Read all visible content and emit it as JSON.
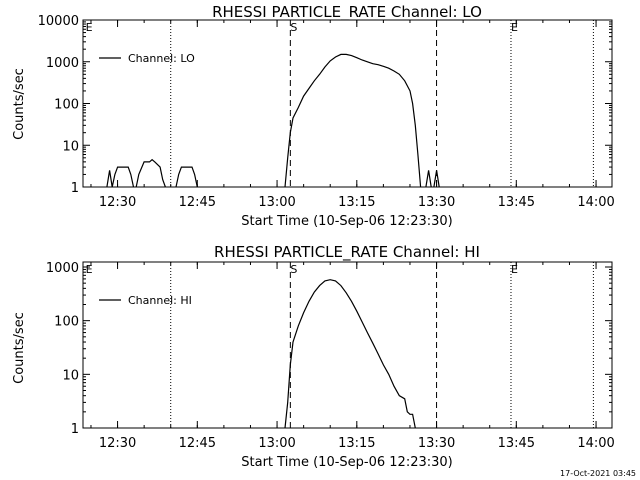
{
  "chart_data": [
    {
      "type": "line",
      "title": "RHESSI PARTICLE_RATE Channel: LO",
      "xlabel": "Start Time (10-Sep-06 12:23:30)",
      "ylabel": "Counts/sec",
      "y_scale": "log",
      "ylim": [
        1,
        10000
      ],
      "xlim": [
        "12:23:30",
        "14:03:00"
      ],
      "xticks": [
        "12:30",
        "12:45",
        "13:00",
        "13:15",
        "13:30",
        "13:45",
        "14:00"
      ],
      "yticks": [
        "1",
        "10",
        "100",
        "1000",
        "10000"
      ],
      "legend": {
        "position": "top-left",
        "entries": [
          "Channel: LO"
        ]
      },
      "markers": {
        "dashed": [
          "13:02:30",
          "13:30:00"
        ],
        "dotted": [
          "12:23:30",
          "12:40:00",
          "13:44:00",
          "13:59:30"
        ],
        "labels": [
          {
            "text": "E",
            "x": "12:24:00"
          },
          {
            "text": "S",
            "x": "13:02:30"
          },
          {
            "text": "E",
            "x": "13:44:00"
          }
        ]
      },
      "series": [
        {
          "name": "Channel: LO",
          "segments": [
            [
              [
                "12:28:00",
                1
              ],
              [
                "12:28:30",
                2.5
              ],
              [
                "12:29:00",
                1
              ],
              [
                "12:29:30",
                2
              ],
              [
                "12:30:00",
                3
              ],
              [
                "12:31:00",
                3
              ],
              [
                "12:32:00",
                3
              ],
              [
                "12:32:30",
                2
              ],
              [
                "12:33:00",
                1
              ]
            ],
            [
              [
                "12:33:30",
                1
              ],
              [
                "12:34:00",
                2
              ],
              [
                "12:35:00",
                4
              ],
              [
                "12:36:00",
                4
              ],
              [
                "12:36:30",
                4.5
              ],
              [
                "12:37:00",
                4
              ],
              [
                "12:38:00",
                3
              ],
              [
                "12:38:30",
                1.5
              ],
              [
                "12:39:00",
                1
              ]
            ],
            [
              [
                "12:41:00",
                1
              ],
              [
                "12:41:30",
                2
              ],
              [
                "12:42:00",
                3
              ],
              [
                "12:43:00",
                3
              ],
              [
                "12:44:00",
                3
              ],
              [
                "12:44:30",
                2
              ],
              [
                "12:45:00",
                1
              ]
            ],
            [
              [
                "13:01:30",
                1
              ],
              [
                "13:02:00",
                5
              ],
              [
                "13:02:30",
                20
              ],
              [
                "13:03:00",
                45
              ],
              [
                "13:04:00",
                80
              ],
              [
                "13:05:00",
                150
              ],
              [
                "13:06:00",
                230
              ],
              [
                "13:07:00",
                350
              ],
              [
                "13:08:00",
                500
              ],
              [
                "13:09:00",
                750
              ],
              [
                "13:10:00",
                1050
              ],
              [
                "13:11:00",
                1300
              ],
              [
                "13:12:00",
                1500
              ],
              [
                "13:13:00",
                1500
              ],
              [
                "13:14:00",
                1400
              ],
              [
                "13:15:00",
                1250
              ],
              [
                "13:16:00",
                1100
              ],
              [
                "13:17:00",
                1000
              ],
              [
                "13:18:00",
                900
              ],
              [
                "13:19:00",
                850
              ],
              [
                "13:20:00",
                780
              ],
              [
                "13:21:00",
                700
              ],
              [
                "13:22:00",
                600
              ],
              [
                "13:23:00",
                500
              ],
              [
                "13:24:00",
                350
              ],
              [
                "13:25:00",
                200
              ],
              [
                "13:25:30",
                100
              ],
              [
                "13:26:00",
                30
              ],
              [
                "13:26:30",
                6
              ],
              [
                "13:27:00",
                1
              ]
            ],
            [
              [
                "13:28:00",
                1
              ],
              [
                "13:28:30",
                2.5
              ],
              [
                "13:29:00",
                1
              ]
            ],
            [
              [
                "13:29:30",
                1
              ],
              [
                "13:30:00",
                2.5
              ],
              [
                "13:30:30",
                1
              ]
            ]
          ]
        }
      ]
    },
    {
      "type": "line",
      "title": "RHESSI PARTICLE_RATE Channel: HI",
      "xlabel": "Start Time (10-Sep-06 12:23:30)",
      "ylabel": "Counts/sec",
      "y_scale": "log",
      "ylim": [
        1,
        1000
      ],
      "xlim": [
        "12:23:30",
        "14:03:00"
      ],
      "xticks": [
        "12:30",
        "12:45",
        "13:00",
        "13:15",
        "13:30",
        "13:45",
        "14:00"
      ],
      "yticks": [
        "1",
        "10",
        "100",
        "1000"
      ],
      "legend": {
        "position": "top-left",
        "entries": [
          "Channel: HI"
        ]
      },
      "markers": {
        "dashed": [
          "13:02:30",
          "13:30:00"
        ],
        "dotted": [
          "12:23:30",
          "12:40:00",
          "13:44:00",
          "13:59:30"
        ],
        "labels": [
          {
            "text": "E",
            "x": "12:24:00"
          },
          {
            "text": "S",
            "x": "13:02:30"
          },
          {
            "text": "E",
            "x": "13:44:00"
          }
        ]
      },
      "series": [
        {
          "name": "Channel: HI",
          "segments": [
            [
              [
                "13:01:30",
                1
              ],
              [
                "13:02:00",
                3
              ],
              [
                "13:02:30",
                15
              ],
              [
                "13:03:00",
                40
              ],
              [
                "13:04:00",
                80
              ],
              [
                "13:05:00",
                140
              ],
              [
                "13:06:00",
                230
              ],
              [
                "13:07:00",
                340
              ],
              [
                "13:08:00",
                450
              ],
              [
                "13:09:00",
                550
              ],
              [
                "13:10:00",
                580
              ],
              [
                "13:11:00",
                550
              ],
              [
                "13:12:00",
                450
              ],
              [
                "13:13:00",
                330
              ],
              [
                "13:14:00",
                230
              ],
              [
                "13:15:00",
                150
              ],
              [
                "13:16:00",
                95
              ],
              [
                "13:17:00",
                60
              ],
              [
                "13:18:00",
                38
              ],
              [
                "13:19:00",
                24
              ],
              [
                "13:20:00",
                15
              ],
              [
                "13:21:00",
                10
              ],
              [
                "13:22:00",
                6
              ],
              [
                "13:23:00",
                4
              ],
              [
                "13:24:00",
                3.5
              ],
              [
                "13:24:30",
                2
              ],
              [
                "13:25:00",
                1.8
              ],
              [
                "13:25:30",
                1.8
              ],
              [
                "13:26:00",
                1
              ]
            ]
          ]
        }
      ]
    }
  ],
  "footer": {
    "timestamp": "17-Oct-2021 03:45"
  }
}
